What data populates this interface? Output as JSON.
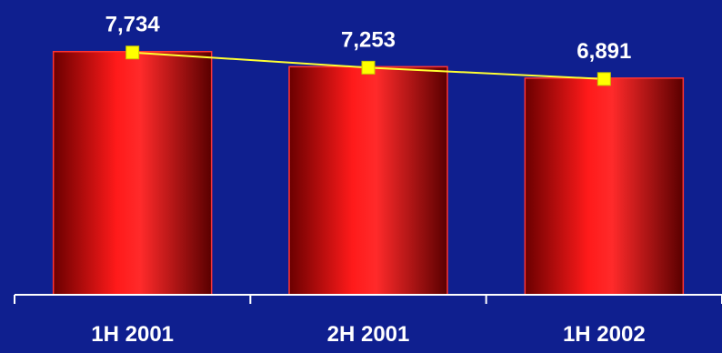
{
  "chart_data": {
    "type": "bar",
    "categories": [
      "1H 2001",
      "2H 2001",
      "1H 2002"
    ],
    "values": [
      7734,
      7253,
      6891
    ],
    "value_labels": [
      "7,734",
      "7,253",
      "6,891"
    ],
    "overlay_line": true,
    "ylim": [
      0,
      8000
    ],
    "grid": false,
    "colors": {
      "background": "#0f1f8f",
      "bar_dark": "#6b0000",
      "bar_mid": "#ff1010",
      "bar_edge": "#ff3333",
      "line": "#ffff33",
      "marker": "#ffff00",
      "text": "#ffffff",
      "axis": "#ffffff"
    }
  }
}
